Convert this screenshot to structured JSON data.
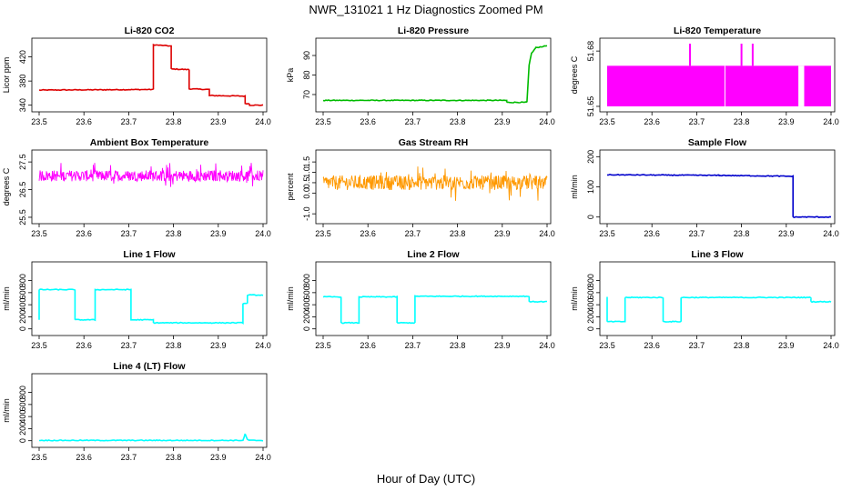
{
  "page": {
    "title": "NWR_131021  1 Hz Diagnostics Zoomed PM",
    "xlabel": "Hour of Day (UTC)"
  },
  "chart_data": [
    {
      "type": "line",
      "title": "Li-820 CO2",
      "ylabel": "Licor ppm",
      "color": "#dd0000",
      "xlim": [
        23.5,
        24.0
      ],
      "ylim": [
        335,
        445
      ],
      "xticks": [
        "23.5",
        "23.6",
        "23.7",
        "23.8",
        "23.9",
        "24.0"
      ],
      "yticks": [
        "340",
        "380",
        "420"
      ],
      "series": [
        {
          "x": [
            23.5,
            23.755,
            23.755,
            23.795,
            23.795,
            23.835,
            23.835,
            23.88,
            23.88,
            23.96,
            23.96,
            23.97,
            23.97,
            24.0
          ],
          "y": [
            365,
            366,
            440,
            438,
            400,
            399,
            367,
            366,
            356,
            355,
            343,
            342,
            340,
            340
          ]
        }
      ]
    },
    {
      "type": "line",
      "title": "Li-820 Pressure",
      "ylabel": "kPa",
      "color": "#00bb00",
      "xlim": [
        23.5,
        24.0
      ],
      "ylim": [
        63,
        97
      ],
      "xticks": [
        "23.5",
        "23.6",
        "23.7",
        "23.8",
        "23.9",
        "24.0"
      ],
      "yticks": [
        "70",
        "80",
        "90"
      ],
      "series": [
        {
          "x": [
            23.5,
            23.91,
            23.91,
            23.955,
            23.96,
            23.965,
            23.975,
            24.0
          ],
          "y": [
            67,
            67,
            66,
            66,
            85,
            91,
            94,
            95
          ]
        }
      ]
    },
    {
      "type": "line",
      "title": "Li-820 Temperature",
      "ylabel": "degrees C",
      "color": "#ff00ff",
      "xlim": [
        23.5,
        24.0
      ],
      "ylim": [
        51.649,
        51.685
      ],
      "xticks": [
        "23.5",
        "23.6",
        "23.7",
        "23.8",
        "23.9",
        "24.0"
      ],
      "yticks": [
        "51.65",
        "51.68"
      ],
      "series": [
        {
          "band": [
            51.65,
            51.672
          ],
          "spikes_x": [
            23.685,
            23.8,
            23.825
          ]
        }
      ]
    },
    {
      "type": "line",
      "title": "Ambient Box Temperature",
      "ylabel": "degrees C",
      "color": "#ff00ff",
      "xlim": [
        23.5,
        24.0
      ],
      "ylim": [
        25.4,
        27.8
      ],
      "xticks": [
        "23.5",
        "23.6",
        "23.7",
        "23.8",
        "23.9",
        "24.0"
      ],
      "yticks": [
        "25.5",
        "26.5",
        "27.5"
      ],
      "series": [
        {
          "mean": 27.0,
          "noise": 0.2
        }
      ]
    },
    {
      "type": "line",
      "title": "Gas Stream RH",
      "ylabel": "percent",
      "color": "#ff9900",
      "xlim": [
        23.5,
        24.0
      ],
      "ylim": [
        -1.3,
        1.9
      ],
      "xticks": [
        "23.5",
        "23.6",
        "23.7",
        "23.8",
        "23.9",
        "24.0"
      ],
      "yticks": [
        "-1.0",
        "0.0",
        "0.5",
        "1.0",
        "1.5"
      ],
      "series": [
        {
          "mean": 0.5,
          "noise": 0.35
        }
      ]
    },
    {
      "type": "line",
      "title": "Sample Flow",
      "ylabel": "ml/min",
      "color": "#0000cc",
      "xlim": [
        23.5,
        24.0
      ],
      "ylim": [
        -10,
        210
      ],
      "xticks": [
        "23.5",
        "23.6",
        "23.7",
        "23.8",
        "23.9",
        "24.0"
      ],
      "yticks": [
        "0",
        "100",
        "200"
      ],
      "series": [
        {
          "x": [
            23.5,
            23.75,
            23.915,
            23.915,
            24.0
          ],
          "y": [
            140,
            138,
            135,
            0,
            0
          ]
        }
      ]
    },
    {
      "type": "line",
      "title": "Line 1 Flow",
      "ylabel": "ml/min",
      "color": "#00ffff",
      "xlim": [
        23.5,
        24.0
      ],
      "ylim": [
        -50,
        1050
      ],
      "xticks": [
        "23.5",
        "23.6",
        "23.7",
        "23.8",
        "23.9",
        "24.0"
      ],
      "yticks": [
        "0",
        "200",
        "400",
        "600",
        "800"
      ],
      "series": [
        {
          "x": [
            23.5,
            23.5,
            23.58,
            23.58,
            23.625,
            23.625,
            23.705,
            23.705,
            23.755,
            23.755,
            23.955,
            23.955,
            23.965,
            23.965,
            24.0
          ],
          "y": [
            150,
            650,
            650,
            150,
            150,
            650,
            650,
            150,
            150,
            100,
            100,
            420,
            420,
            560,
            560
          ]
        }
      ]
    },
    {
      "type": "line",
      "title": "Line 2 Flow",
      "ylabel": "ml/min",
      "color": "#00ffff",
      "xlim": [
        23.5,
        24.0
      ],
      "ylim": [
        -50,
        1050
      ],
      "xticks": [
        "23.5",
        "23.6",
        "23.7",
        "23.8",
        "23.9",
        "24.0"
      ],
      "yticks": [
        "0",
        "200",
        "400",
        "600",
        "800"
      ],
      "series": [
        {
          "x": [
            23.5,
            23.54,
            23.54,
            23.58,
            23.58,
            23.665,
            23.665,
            23.705,
            23.705,
            23.96,
            23.96,
            24.0
          ],
          "y": [
            530,
            530,
            100,
            100,
            530,
            530,
            100,
            100,
            540,
            540,
            450,
            450
          ]
        }
      ]
    },
    {
      "type": "line",
      "title": "Line 3 Flow",
      "ylabel": "ml/min",
      "color": "#00ffff",
      "xlim": [
        23.5,
        24.0
      ],
      "ylim": [
        -50,
        1050
      ],
      "xticks": [
        "23.5",
        "23.6",
        "23.7",
        "23.8",
        "23.9",
        "24.0"
      ],
      "yticks": [
        "0",
        "200",
        "400",
        "600",
        "800"
      ],
      "series": [
        {
          "x": [
            23.5,
            23.5,
            23.54,
            23.54,
            23.625,
            23.625,
            23.665,
            23.665,
            23.955,
            23.955,
            24.0
          ],
          "y": [
            530,
            120,
            120,
            520,
            520,
            120,
            120,
            520,
            520,
            450,
            450
          ]
        }
      ]
    },
    {
      "type": "line",
      "title": "Line 4 (LT) Flow",
      "ylabel": "ml/min",
      "color": "#00ffff",
      "xlim": [
        23.5,
        24.0
      ],
      "ylim": [
        -50,
        1050
      ],
      "xticks": [
        "23.5",
        "23.6",
        "23.7",
        "23.8",
        "23.9",
        "24.0"
      ],
      "yticks": [
        "0",
        "200",
        "400",
        "600",
        "800"
      ],
      "series": [
        {
          "x": [
            23.5,
            23.955,
            23.96,
            23.965,
            23.97,
            24.0
          ],
          "y": [
            5,
            5,
            110,
            20,
            5,
            5
          ]
        }
      ]
    }
  ]
}
